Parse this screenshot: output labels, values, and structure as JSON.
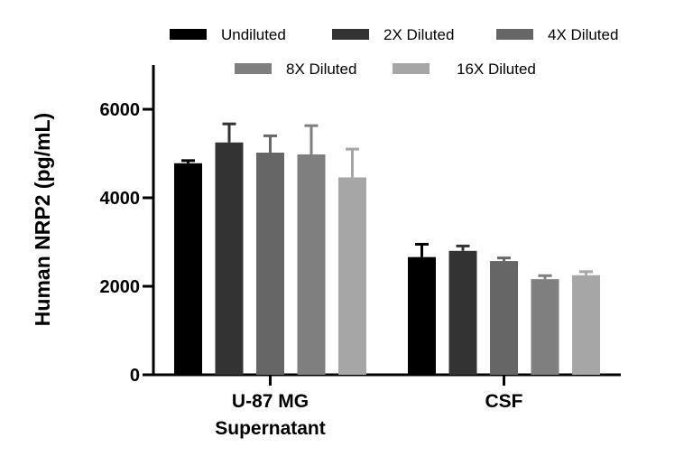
{
  "chart_data": {
    "type": "bar",
    "title": "",
    "xlabel": "",
    "ylabel": "Human NRP2 (pg/mL)",
    "ylim": [
      0,
      7000
    ],
    "yticks": [
      0,
      2000,
      4000,
      6000
    ],
    "grid": false,
    "legend_position": "top",
    "categories": [
      "U-87 MG Supernatant",
      "CSF"
    ],
    "category_lines": [
      [
        "U-87 MG",
        "Supernatant"
      ],
      [
        "CSF"
      ]
    ],
    "series": [
      {
        "name": "Undiluted",
        "color": "#000000",
        "values": [
          4780,
          2660
        ],
        "errors": [
          60,
          290
        ]
      },
      {
        "name": "2X Diluted",
        "color": "#333333",
        "values": [
          5250,
          2800
        ],
        "errors": [
          420,
          110
        ]
      },
      {
        "name": "4X Diluted",
        "color": "#666666",
        "values": [
          5020,
          2570
        ],
        "errors": [
          380,
          70
        ]
      },
      {
        "name": "8X Diluted",
        "color": "#7f7f7f",
        "values": [
          4980,
          2160
        ],
        "errors": [
          650,
          80
        ]
      },
      {
        "name": "16X Diluted",
        "color": "#a6a6a6",
        "values": [
          4460,
          2250
        ],
        "errors": [
          640,
          80
        ]
      }
    ]
  }
}
